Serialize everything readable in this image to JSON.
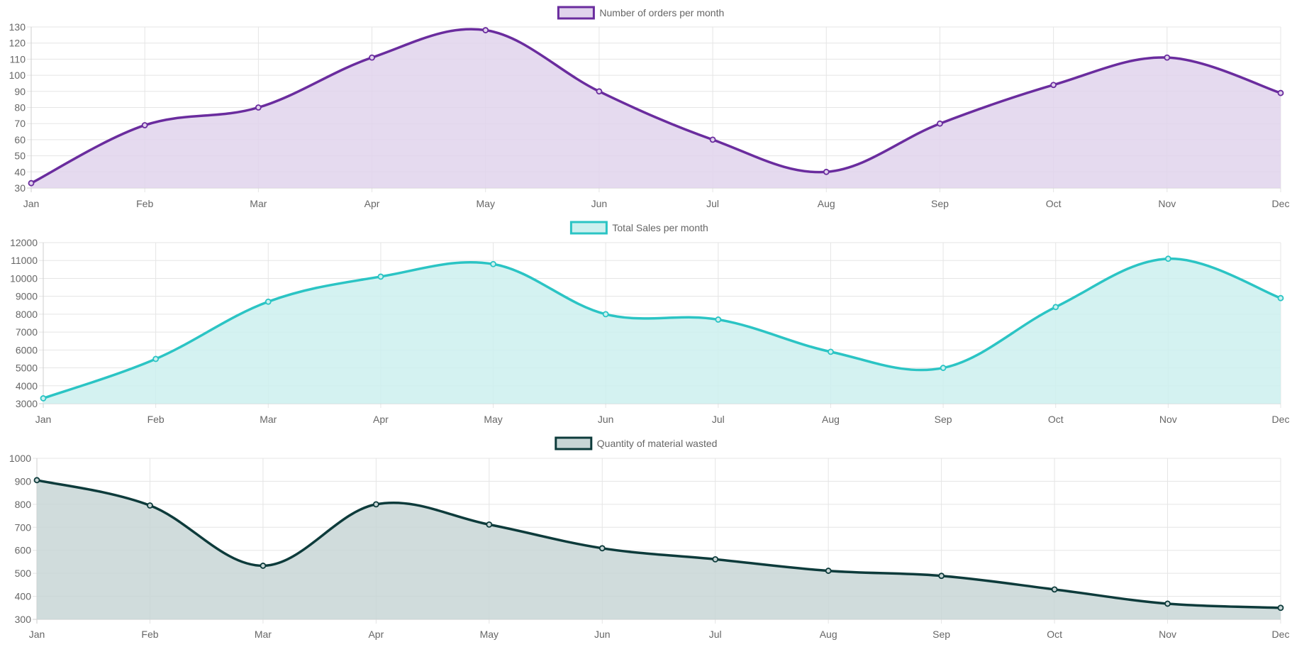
{
  "chart_data": [
    {
      "type": "area",
      "title": "",
      "categories": [
        "Jan",
        "Feb",
        "Mar",
        "Apr",
        "May",
        "Jun",
        "Jul",
        "Aug",
        "Sep",
        "Oct",
        "Nov",
        "Dec"
      ],
      "series": [
        {
          "name": "Number of orders per month",
          "values": [
            33,
            69,
            80,
            111,
            128,
            90,
            60,
            40,
            70,
            94,
            111,
            89
          ]
        }
      ],
      "ylim": [
        30,
        130
      ],
      "yticks": [
        "130",
        "120",
        "110",
        "100",
        "90",
        "80",
        "70",
        "60",
        "50",
        "40",
        "30"
      ],
      "grid": true,
      "legend": "top",
      "line_color": "#6a2c9e",
      "fill_color": "#e0d3ec"
    },
    {
      "type": "area",
      "title": "",
      "categories": [
        "Jan",
        "Feb",
        "Mar",
        "Apr",
        "May",
        "Jun",
        "Jul",
        "Aug",
        "Sep",
        "Oct",
        "Nov",
        "Dec"
      ],
      "series": [
        {
          "name": "Total Sales per month",
          "values": [
            3300,
            5500,
            8700,
            10100,
            10800,
            8000,
            7700,
            5900,
            5000,
            8400,
            11100,
            8900
          ]
        }
      ],
      "ylim": [
        3000,
        12000
      ],
      "yticks": [
        "12000",
        "11000",
        "10000",
        "9000",
        "8000",
        "7000",
        "6000",
        "5000",
        "4000",
        "3000"
      ],
      "grid": true,
      "legend": "top",
      "line_color": "#2bc4c4",
      "fill_color": "#cdf0ef"
    },
    {
      "type": "area",
      "title": "",
      "categories": [
        "Jan",
        "Feb",
        "Mar",
        "Apr",
        "May",
        "Jun",
        "Jul",
        "Aug",
        "Sep",
        "Oct",
        "Nov",
        "Dec"
      ],
      "series": [
        {
          "name": "Quantity of material wasted",
          "values": [
            905,
            795,
            533,
            800,
            712,
            609,
            561,
            511,
            489,
            430,
            368,
            350
          ]
        }
      ],
      "ylim": [
        300,
        1000
      ],
      "yticks": [
        "1000",
        "900",
        "800",
        "700",
        "600",
        "500",
        "400",
        "300"
      ],
      "grid": true,
      "legend": "top",
      "line_color": "#0d3b3b",
      "fill_color": "#c8d6d6"
    }
  ]
}
